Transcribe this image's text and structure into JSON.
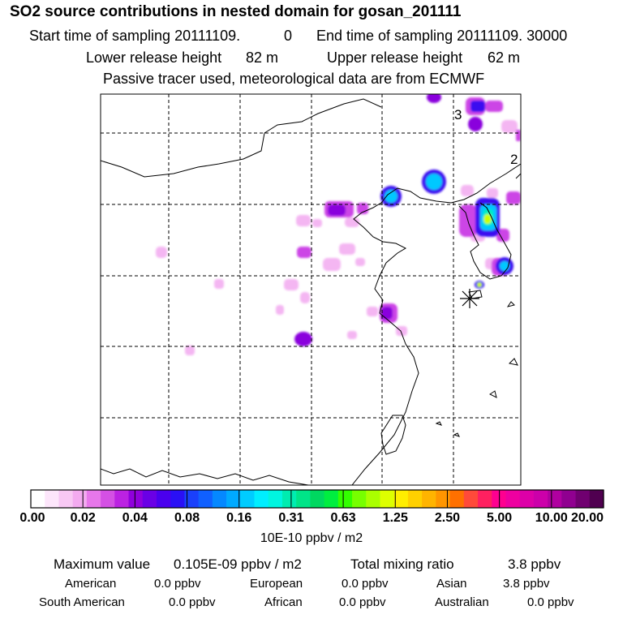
{
  "title": "SO2 source contributions in nested domain for gosan_201111",
  "header": {
    "start_label": "Start time of sampling 20111109.",
    "start_value": "0",
    "end_label": "End time of sampling 20111109. 30000",
    "lower_label": "Lower release height",
    "lower_value": "82 m",
    "upper_label": "Upper release height",
    "upper_value": "62 m",
    "tracer_note": "Passive tracer used, meteorological data are from ECMWF"
  },
  "map": {
    "labels": [
      "3",
      "2"
    ],
    "colors": {
      "frame": "#000000",
      "grid": "#000000",
      "coast": "#000000",
      "station": "#000000"
    }
  },
  "colorbar": {
    "ticks": [
      "0.00",
      "0.02",
      "0.04",
      "0.08",
      "0.16",
      "0.31",
      "0.63",
      "1.25",
      "2.50",
      "5.00",
      "10.00",
      "20.00"
    ],
    "colors": [
      "#ffffff",
      "#fde6fb",
      "#f8c8f4",
      "#f3aaf0",
      "#e777ea",
      "#d450e4",
      "#bb22e2",
      "#9000dd",
      "#6a00e6",
      "#4a00ee",
      "#2a10f5",
      "#1a40fb",
      "#1060ff",
      "#0588ff",
      "#00aaff",
      "#00ccff",
      "#00eeff",
      "#00f5e0",
      "#00ecb0",
      "#00e488",
      "#00d860",
      "#00ee40",
      "#33ff00",
      "#77ff00",
      "#aaff00",
      "#ddff00",
      "#ffee00",
      "#ffd000",
      "#ffb400",
      "#ff9600",
      "#ff7000",
      "#ff4a3a",
      "#ff2060",
      "#ff0090",
      "#ee00a0",
      "#dd00a8",
      "#cc00aa",
      "#b000a0",
      "#900090",
      "#700070",
      "#500050"
    ],
    "units": "10E-10 ppbv / m2"
  },
  "summary": {
    "max_label": "Maximum value",
    "max_value": "0.105E-09 ppbv / m2",
    "total_label": "Total mixing ratio",
    "total_value": "3.8 ppbv",
    "regions": [
      {
        "name": "American",
        "value": "0.0 ppbv"
      },
      {
        "name": "European",
        "value": "0.0 ppbv"
      },
      {
        "name": "Asian",
        "value": "3.8 ppbv"
      },
      {
        "name": "South American",
        "value": "0.0 ppbv"
      },
      {
        "name": "African",
        "value": "0.0 ppbv"
      },
      {
        "name": "Australian",
        "value": "0.0 ppbv"
      }
    ]
  }
}
